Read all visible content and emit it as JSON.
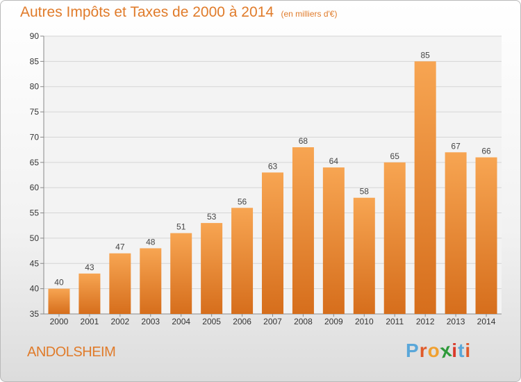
{
  "header": {
    "title": "Autres Impôts et Taxes de 2000 à 2014",
    "unit": "(en milliers d'€)"
  },
  "footer": {
    "city": "ANDOLSHEIM",
    "logo": [
      "P",
      "r",
      "o",
      "x",
      "i",
      "t",
      "i"
    ]
  },
  "colors": {
    "accent": "#e07b2a",
    "bar_top": "#f7a552",
    "bar_bottom": "#d66e1c",
    "logo": [
      "#5aa7d9",
      "#e05a2a",
      "#f0a030",
      "#2e9a3a",
      "#d93a2a",
      "#5aa7d9",
      "#e05a2a"
    ]
  },
  "chart_data": {
    "type": "bar",
    "categories": [
      "2000",
      "2001",
      "2002",
      "2003",
      "2004",
      "2005",
      "2006",
      "2007",
      "2008",
      "2009",
      "2010",
      "2011",
      "2012",
      "2013",
      "2014"
    ],
    "values": [
      40,
      43,
      47,
      48,
      51,
      53,
      56,
      63,
      68,
      64,
      58,
      65,
      85,
      67,
      66
    ],
    "ylim": [
      35,
      90
    ],
    "yticks": [
      35,
      40,
      45,
      50,
      55,
      60,
      65,
      70,
      75,
      80,
      85,
      90
    ],
    "grid": true
  }
}
